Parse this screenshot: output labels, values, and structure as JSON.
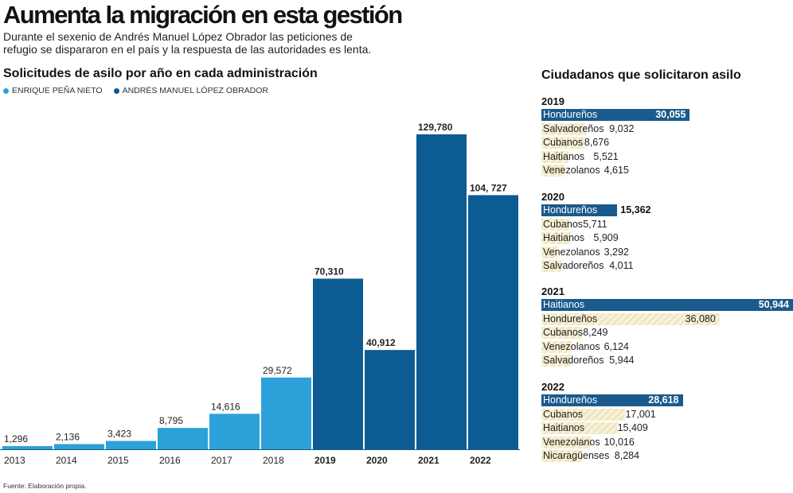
{
  "headline": "Aumenta la migración en esta gestión",
  "subtitle_lines": [
    "Durante el sexenio de Andrés Manuel López Obrador las peticiones de",
    "refugio se dispararon en el país y la respuesta de las autoridades es lenta."
  ],
  "source": "Fuente: Elaboración propia.",
  "colors": {
    "epn": "#2ca1d9",
    "amlo": "#0d5b93",
    "highlight": "#1a5a8c",
    "hatch": "#efe6bf"
  },
  "chart_data": {
    "type": "bar",
    "title": "Solicitudes de asilo por año en cada administración",
    "legend": [
      {
        "name": "ENRIQUE PEÑA NIETO",
        "color": "#2ca1d9"
      },
      {
        "name": "ANDRÉS MANUEL LÓPEZ OBRADOR",
        "color": "#0d5b93"
      }
    ],
    "categories": [
      "2013",
      "2014",
      "2015",
      "2016",
      "2017",
      "2018",
      "2019",
      "2020",
      "2021",
      "2022"
    ],
    "values": [
      1296,
      2136,
      3423,
      8795,
      14616,
      29572,
      70310,
      40912,
      129780,
      104727
    ],
    "value_labels": [
      "1,296",
      "2,136",
      "3,423",
      "8,795",
      "14,616",
      "29,572",
      "70,310",
      "40,912",
      "129,780",
      "104, 727"
    ],
    "series_of_bar": [
      "ENRIQUE PEÑA NIETO",
      "ENRIQUE PEÑA NIETO",
      "ENRIQUE PEÑA NIETO",
      "ENRIQUE PEÑA NIETO",
      "ENRIQUE PEÑA NIETO",
      "ENRIQUE PEÑA NIETO",
      "ANDRÉS MANUEL LÓPEZ OBRADOR",
      "ANDRÉS MANUEL LÓPEZ OBRADOR",
      "ANDRÉS MANUEL LÓPEZ OBRADOR",
      "ANDRÉS MANUEL LÓPEZ OBRADOR"
    ],
    "xlabel": "",
    "ylabel": "",
    "ylim": [
      0,
      135000
    ]
  },
  "sidebar": {
    "title": "Ciudadanos que solicitaron asilo",
    "scale_max": 50944,
    "years": [
      {
        "year": "2019",
        "entries": [
          {
            "country": "Hondureños",
            "value": 30055,
            "label": "30,055"
          },
          {
            "country": "Salvadoreños",
            "value": 9032,
            "label": "9,032"
          },
          {
            "country": "Cubanos",
            "value": 8676,
            "label": "8,676"
          },
          {
            "country": "Haitianos",
            "value": 5521,
            "label": "5,521"
          },
          {
            "country": "Venezolanos",
            "value": 4615,
            "label": "4,615"
          }
        ]
      },
      {
        "year": "2020",
        "entries": [
          {
            "country": "Hondureños",
            "value": 15362,
            "label": "15,362"
          },
          {
            "country": "Cubanos",
            "value": 5711,
            "label": "5,711"
          },
          {
            "country": "Haitianos",
            "value": 5909,
            "label": "5,909"
          },
          {
            "country": "Venezolanos",
            "value": 3292,
            "label": "3,292"
          },
          {
            "country": "Salvadoreños",
            "value": 4011,
            "label": "4,011"
          }
        ]
      },
      {
        "year": "2021",
        "entries": [
          {
            "country": "Haitianos",
            "value": 50944,
            "label": "50,944"
          },
          {
            "country": "Hondureños",
            "value": 36080,
            "label": "36,080"
          },
          {
            "country": "Cubanos",
            "value": 8249,
            "label": "8,249"
          },
          {
            "country": "Venezolanos",
            "value": 6124,
            "label": "6,124"
          },
          {
            "country": "Salvadoreños",
            "value": 5944,
            "label": "5,944"
          }
        ]
      },
      {
        "year": "2022",
        "entries": [
          {
            "country": "Hondureños",
            "value": 28618,
            "label": "28,618"
          },
          {
            "country": "Cubanos",
            "value": 17001,
            "label": "17,001"
          },
          {
            "country": "Haitianos",
            "value": 15409,
            "label": "15,409"
          },
          {
            "country": "Venezolanos",
            "value": 10016,
            "label": "10,016"
          },
          {
            "country": "Nicaragüenses",
            "value": 8284,
            "label": "8,284"
          }
        ]
      }
    ]
  }
}
